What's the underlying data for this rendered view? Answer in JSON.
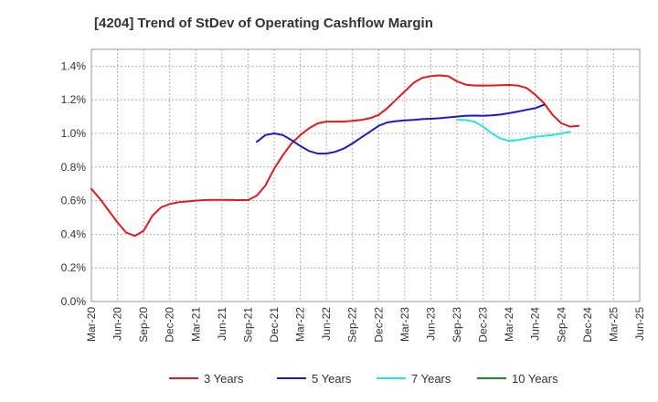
{
  "chart_data": {
    "type": "line",
    "title": "[4204]  Trend of StDev of Operating Cashflow Margin",
    "xlabel": "",
    "ylabel": "",
    "ylim": [
      0,
      1.5
    ],
    "y_ticks": [
      "0.0%",
      "0.2%",
      "0.4%",
      "0.6%",
      "0.8%",
      "1.0%",
      "1.2%",
      "1.4%"
    ],
    "y_tick_values": [
      0,
      0.2,
      0.4,
      0.6,
      0.8,
      1.0,
      1.2,
      1.4
    ],
    "x_ticks": [
      "Mar-20",
      "Jun-20",
      "Sep-20",
      "Dec-20",
      "Mar-21",
      "Jun-21",
      "Sep-21",
      "Dec-21",
      "Mar-22",
      "Jun-22",
      "Sep-22",
      "Dec-22",
      "Mar-23",
      "Jun-23",
      "Sep-23",
      "Dec-23",
      "Mar-24",
      "Jun-24",
      "Sep-24",
      "Dec-24",
      "Mar-25",
      "Jun-25"
    ],
    "grid": true,
    "legend_position": "bottom",
    "series": [
      {
        "name": "3 Years",
        "color": "#e01b1b",
        "start_index": 0,
        "values": [
          0.67,
          0.61,
          0.54,
          0.47,
          0.41,
          0.39,
          0.42,
          0.51,
          0.56,
          0.58,
          0.59,
          0.595,
          0.6,
          0.603,
          0.605,
          0.605,
          0.604,
          0.603,
          0.603,
          0.63,
          0.69,
          0.79,
          0.87,
          0.94,
          0.99,
          1.03,
          1.06,
          1.07,
          1.07,
          1.07,
          1.075,
          1.08,
          1.09,
          1.11,
          1.15,
          1.2,
          1.25,
          1.3,
          1.33,
          1.34,
          1.345,
          1.34,
          1.31,
          1.29,
          1.285,
          1.285,
          1.285,
          1.287,
          1.288,
          1.285,
          1.27,
          1.23,
          1.18,
          1.11,
          1.06,
          1.04,
          1.045
        ]
      },
      {
        "name": "5 Years",
        "color": "#1a1acc",
        "start_index": 19,
        "values": [
          0.95,
          0.99,
          1.0,
          0.99,
          0.96,
          0.925,
          0.895,
          0.88,
          0.88,
          0.89,
          0.91,
          0.94,
          0.975,
          1.01,
          1.045,
          1.065,
          1.073,
          1.077,
          1.08,
          1.085,
          1.087,
          1.09,
          1.095,
          1.1,
          1.105,
          1.106,
          1.105,
          1.107,
          1.112,
          1.12,
          1.13,
          1.14,
          1.15,
          1.17
        ]
      },
      {
        "name": "7 Years",
        "color": "#22e6e6",
        "start_index": 42,
        "values": [
          1.08,
          1.08,
          1.07,
          1.04,
          1.0,
          0.97,
          0.955,
          0.96,
          0.97,
          0.98,
          0.985,
          0.99,
          1.0,
          1.01
        ]
      },
      {
        "name": "10 Years",
        "color": "#1a8c1a",
        "start_index": 0,
        "values": []
      }
    ]
  }
}
